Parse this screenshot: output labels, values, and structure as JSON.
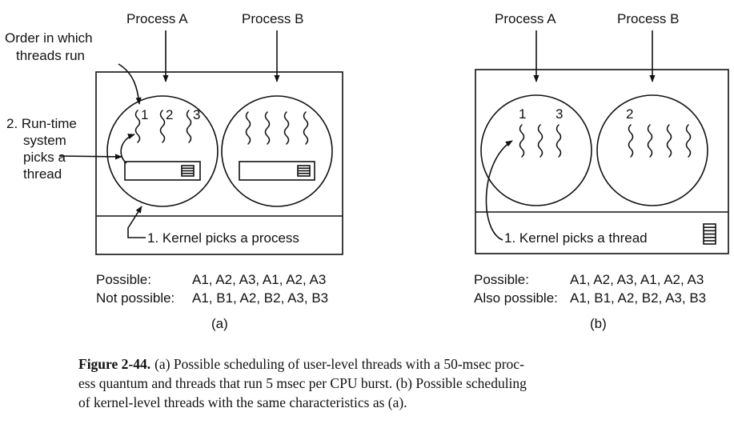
{
  "panel_a": {
    "process_a_label": "Process A",
    "process_b_label": "Process B",
    "order_label_line1": "Order in which",
    "order_label_line2": "threads run",
    "runtime_line1": "2. Run-time",
    "runtime_line2": "system",
    "runtime_line3": "picks a",
    "runtime_line4": "thread",
    "thread_numbers": [
      "1",
      "2",
      "3"
    ],
    "kernel_label": "1. Kernel picks a process",
    "possible_label": "Possible:",
    "possible_seq": "A1, A2, A3, A1, A2, A3",
    "notpossible_label": "Not possible:",
    "notpossible_seq": "A1, B1, A2, B2, A3, B3",
    "sub_label": "(a)"
  },
  "panel_b": {
    "process_a_label": "Process A",
    "process_b_label": "Process B",
    "thread_numbers": [
      "1",
      "3",
      "2"
    ],
    "kernel_label": "1. Kernel picks a thread",
    "possible_label": "Possible:",
    "possible_seq": "A1, A2, A3, A1, A2, A3",
    "alsopossible_label": "Also possible:",
    "alsopossible_seq": "A1, B1, A2, B2, A3, B3",
    "sub_label": "(b)"
  },
  "caption": {
    "figure_label": "Figure 2-44.",
    "line1": "(a) Possible scheduling of user-level threads with a 50-msec proc-",
    "line2": "ess quantum and threads that run 5 msec per CPU burst.  (b) Possible scheduling",
    "line3": "of kernel-level threads with the same characteristics as (a)."
  }
}
